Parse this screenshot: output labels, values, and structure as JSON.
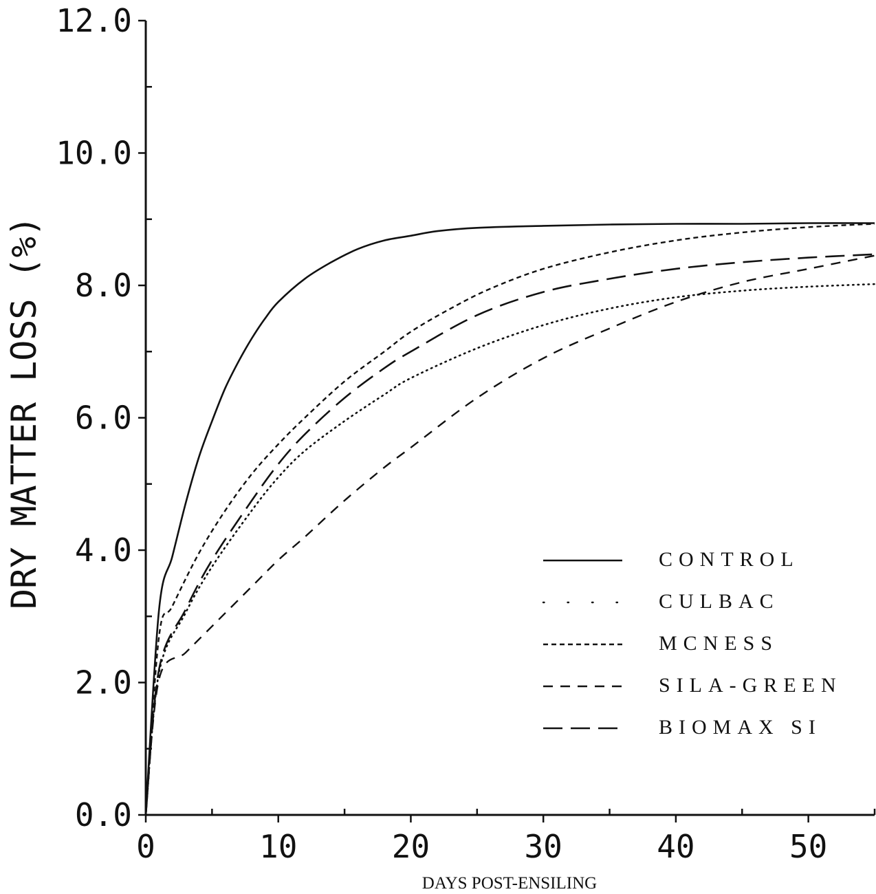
{
  "chart_data": {
    "type": "line",
    "title": "",
    "xlabel": "DAYS POST-ENSILING",
    "ylabel": "DRY MATTER LOSS (%)",
    "xlim": [
      0,
      55
    ],
    "ylim": [
      0,
      12
    ],
    "x_ticks": [
      0,
      10,
      20,
      30,
      40,
      50
    ],
    "x_tick_labels": [
      "0",
      "10",
      "20",
      "30",
      "40",
      "50"
    ],
    "y_ticks": [
      0,
      2,
      4,
      6,
      8,
      10,
      12
    ],
    "y_tick_labels": [
      "0.0",
      "2.0",
      "4.0",
      "6.0",
      "8.0",
      "10.0",
      "12.0"
    ],
    "grid": false,
    "legend_position": "bottom-right",
    "series": [
      {
        "name": "CONTROL",
        "line_style": "solid",
        "x": [
          0,
          1,
          2,
          3,
          4,
          5,
          6,
          7,
          8,
          9,
          10,
          12,
          14,
          16,
          18,
          20,
          22,
          25,
          30,
          35,
          40,
          45,
          50,
          55
        ],
        "values": [
          0,
          3.1,
          3.9,
          4.7,
          5.4,
          5.95,
          6.45,
          6.85,
          7.2,
          7.5,
          7.75,
          8.1,
          8.35,
          8.55,
          8.68,
          8.75,
          8.82,
          8.87,
          8.9,
          8.92,
          8.93,
          8.93,
          8.94,
          8.94
        ]
      },
      {
        "name": "CULBAC",
        "line_style": "dotted",
        "x": [
          0,
          1,
          3,
          5,
          8,
          10,
          12,
          15,
          18,
          20,
          25,
          30,
          35,
          40,
          45,
          50,
          55
        ],
        "values": [
          0,
          2.15,
          3.05,
          3.75,
          4.6,
          5.1,
          5.5,
          5.95,
          6.35,
          6.6,
          7.05,
          7.4,
          7.65,
          7.82,
          7.92,
          7.98,
          8.02
        ]
      },
      {
        "name": "MCNESS",
        "line_style": "short-dash",
        "x": [
          0,
          1,
          2,
          4,
          6,
          8,
          10,
          12,
          15,
          18,
          20,
          23,
          26,
          30,
          35,
          40,
          45,
          50,
          55
        ],
        "values": [
          0,
          2.7,
          3.15,
          3.95,
          4.6,
          5.15,
          5.6,
          6.0,
          6.55,
          7.0,
          7.3,
          7.65,
          7.95,
          8.25,
          8.5,
          8.68,
          8.8,
          8.88,
          8.93
        ]
      },
      {
        "name": "SILA-GREEN",
        "line_style": "medium-dash",
        "x": [
          0,
          1,
          3,
          5,
          8,
          10,
          12,
          15,
          18,
          20,
          25,
          30,
          35,
          40,
          45,
          50,
          55
        ],
        "values": [
          0,
          2.05,
          2.45,
          2.85,
          3.45,
          3.85,
          4.2,
          4.75,
          5.25,
          5.55,
          6.3,
          6.9,
          7.35,
          7.75,
          8.05,
          8.25,
          8.45
        ]
      },
      {
        "name": "BIOMAX SI",
        "line_style": "long-dash",
        "x": [
          0,
          1,
          3,
          5,
          8,
          10,
          12,
          15,
          18,
          20,
          25,
          30,
          35,
          40,
          45,
          50,
          55
        ],
        "values": [
          0,
          2.2,
          3.1,
          3.85,
          4.75,
          5.3,
          5.75,
          6.3,
          6.75,
          7.0,
          7.55,
          7.9,
          8.1,
          8.25,
          8.35,
          8.42,
          8.47
        ]
      }
    ]
  }
}
